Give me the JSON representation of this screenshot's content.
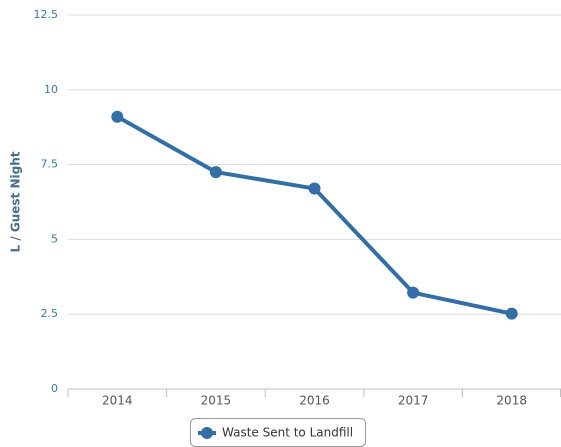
{
  "chart_data": {
    "type": "line",
    "y_label": "L / Guest Night",
    "categories": [
      "2014",
      "2015",
      "2016",
      "2017",
      "2018"
    ],
    "series": [
      {
        "name": "Waste Sent to Landfill",
        "color": "#336ea6",
        "values": [
          9.1,
          7.25,
          6.7,
          3.22,
          2.52
        ]
      }
    ],
    "ylim": [
      0,
      12.5
    ],
    "yticks": [
      0,
      2.5,
      5,
      7.5,
      10,
      12.5
    ],
    "grid": true,
    "legend": "bottom"
  }
}
